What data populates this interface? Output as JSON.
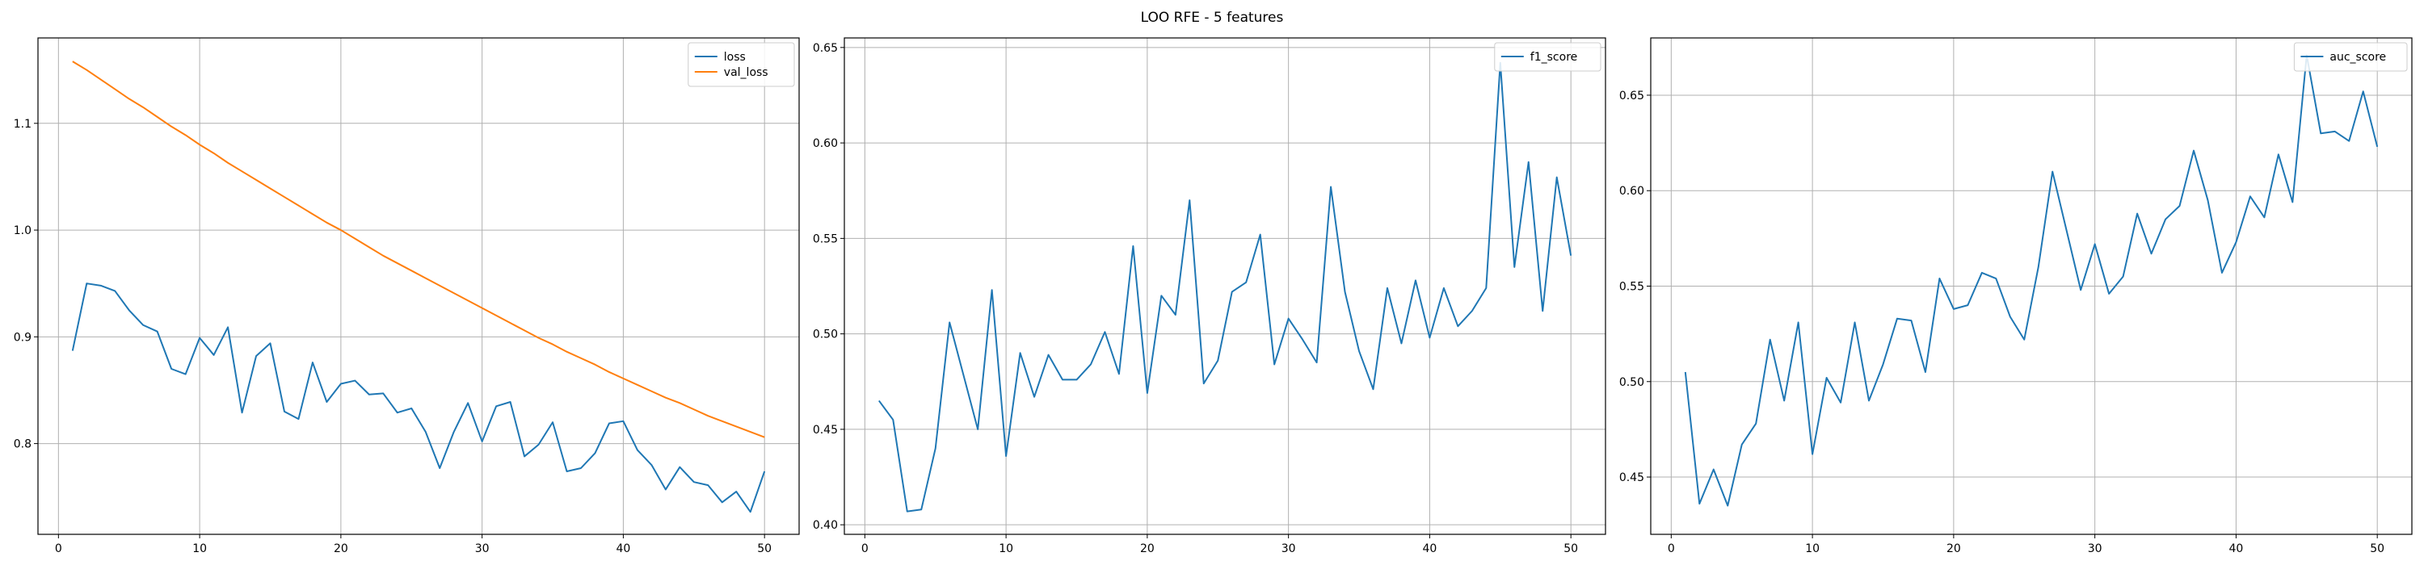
{
  "figure": {
    "suptitle": "LOO RFE - 5 features"
  },
  "colors": {
    "blue": "#1f77b4",
    "orange": "#ff7f0e",
    "grid": "#b0b0b0",
    "axes": "#000000"
  },
  "chart_data": [
    {
      "type": "line",
      "grid": true,
      "legend_placement": "top-right",
      "xlim": [
        -1.45,
        52.45
      ],
      "ylim": [
        0.715,
        1.18
      ],
      "xticks": [
        0,
        10,
        20,
        30,
        40,
        50
      ],
      "yticks": [
        0.8,
        0.9,
        1.0,
        1.1
      ],
      "ytick_labels": [
        "0.8",
        "0.9",
        "1.0",
        "1.1"
      ],
      "x": [
        1,
        2,
        3,
        4,
        5,
        6,
        7,
        8,
        9,
        10,
        11,
        12,
        13,
        14,
        15,
        16,
        17,
        18,
        19,
        20,
        21,
        22,
        23,
        24,
        25,
        26,
        27,
        28,
        29,
        30,
        31,
        32,
        33,
        34,
        35,
        36,
        37,
        38,
        39,
        40,
        41,
        42,
        43,
        44,
        45,
        46,
        47,
        48,
        49,
        50
      ],
      "series": [
        {
          "name": "loss",
          "color": "#1f77b4",
          "values": [
            0.887,
            0.95,
            0.948,
            0.943,
            0.925,
            0.911,
            0.905,
            0.87,
            0.865,
            0.899,
            0.883,
            0.909,
            0.829,
            0.882,
            0.894,
            0.83,
            0.823,
            0.876,
            0.839,
            0.856,
            0.859,
            0.846,
            0.847,
            0.829,
            0.833,
            0.811,
            0.777,
            0.811,
            0.838,
            0.802,
            0.835,
            0.839,
            0.788,
            0.799,
            0.82,
            0.774,
            0.777,
            0.791,
            0.819,
            0.821,
            0.794,
            0.78,
            0.757,
            0.778,
            0.764,
            0.761,
            0.745,
            0.755,
            0.736,
            0.774
          ]
        },
        {
          "name": "val_loss",
          "color": "#ff7f0e",
          "values": [
            1.158,
            1.15,
            1.141,
            1.132,
            1.123,
            1.115,
            1.106,
            1.097,
            1.089,
            1.08,
            1.072,
            1.063,
            1.055,
            1.047,
            1.039,
            1.031,
            1.023,
            1.015,
            1.007,
            1.0,
            0.992,
            0.984,
            0.976,
            0.969,
            0.962,
            0.955,
            0.948,
            0.941,
            0.934,
            0.927,
            0.92,
            0.913,
            0.906,
            0.899,
            0.893,
            0.886,
            0.88,
            0.874,
            0.867,
            0.861,
            0.855,
            0.849,
            0.843,
            0.838,
            0.832,
            0.826,
            0.821,
            0.816,
            0.811,
            0.806
          ]
        }
      ]
    },
    {
      "type": "line",
      "grid": true,
      "legend_placement": "top-right",
      "xlim": [
        -1.45,
        52.45
      ],
      "ylim": [
        0.395,
        0.655
      ],
      "xticks": [
        0,
        10,
        20,
        30,
        40,
        50
      ],
      "yticks": [
        0.4,
        0.45,
        0.5,
        0.55,
        0.6,
        0.65
      ],
      "ytick_labels": [
        "0.40",
        "0.45",
        "0.50",
        "0.55",
        "0.60",
        "0.65"
      ],
      "x": [
        1,
        2,
        3,
        4,
        5,
        6,
        7,
        8,
        9,
        10,
        11,
        12,
        13,
        14,
        15,
        16,
        17,
        18,
        19,
        20,
        21,
        22,
        23,
        24,
        25,
        26,
        27,
        28,
        29,
        30,
        31,
        32,
        33,
        34,
        35,
        36,
        37,
        38,
        39,
        40,
        41,
        42,
        43,
        44,
        45,
        46,
        47,
        48,
        49,
        50
      ],
      "series": [
        {
          "name": "f1_score",
          "color": "#1f77b4",
          "values": [
            0.465,
            0.455,
            0.407,
            0.408,
            0.44,
            0.506,
            0.478,
            0.45,
            0.523,
            0.436,
            0.49,
            0.467,
            0.489,
            0.476,
            0.476,
            0.484,
            0.501,
            0.479,
            0.546,
            0.469,
            0.52,
            0.51,
            0.57,
            0.474,
            0.486,
            0.522,
            0.527,
            0.552,
            0.484,
            0.508,
            0.497,
            0.485,
            0.577,
            0.522,
            0.491,
            0.471,
            0.524,
            0.495,
            0.528,
            0.498,
            0.524,
            0.504,
            0.512,
            0.524,
            0.642,
            0.535,
            0.59,
            0.512,
            0.582,
            0.541
          ]
        }
      ]
    },
    {
      "type": "line",
      "grid": true,
      "legend_placement": "top-right",
      "xlim": [
        -1.45,
        52.45
      ],
      "ylim": [
        0.42,
        0.68
      ],
      "xticks": [
        0,
        10,
        20,
        30,
        40,
        50
      ],
      "yticks": [
        0.45,
        0.5,
        0.55,
        0.6,
        0.65
      ],
      "ytick_labels": [
        "0.45",
        "0.50",
        "0.55",
        "0.60",
        "0.65"
      ],
      "x": [
        1,
        2,
        3,
        4,
        5,
        6,
        7,
        8,
        9,
        10,
        11,
        12,
        13,
        14,
        15,
        16,
        17,
        18,
        19,
        20,
        21,
        22,
        23,
        24,
        25,
        26,
        27,
        28,
        29,
        30,
        31,
        32,
        33,
        34,
        35,
        36,
        37,
        38,
        39,
        40,
        41,
        42,
        43,
        44,
        45,
        46,
        47,
        48,
        49,
        50
      ],
      "series": [
        {
          "name": "auc_score",
          "color": "#1f77b4",
          "values": [
            0.505,
            0.436,
            0.454,
            0.435,
            0.467,
            0.478,
            0.522,
            0.49,
            0.531,
            0.462,
            0.502,
            0.489,
            0.531,
            0.49,
            0.509,
            0.533,
            0.532,
            0.505,
            0.554,
            0.538,
            0.54,
            0.557,
            0.554,
            0.534,
            0.522,
            0.56,
            0.61,
            0.579,
            0.548,
            0.572,
            0.546,
            0.555,
            0.588,
            0.567,
            0.585,
            0.592,
            0.621,
            0.595,
            0.557,
            0.573,
            0.597,
            0.586,
            0.619,
            0.594,
            0.671,
            0.63,
            0.631,
            0.626,
            0.652,
            0.623
          ]
        }
      ]
    }
  ]
}
